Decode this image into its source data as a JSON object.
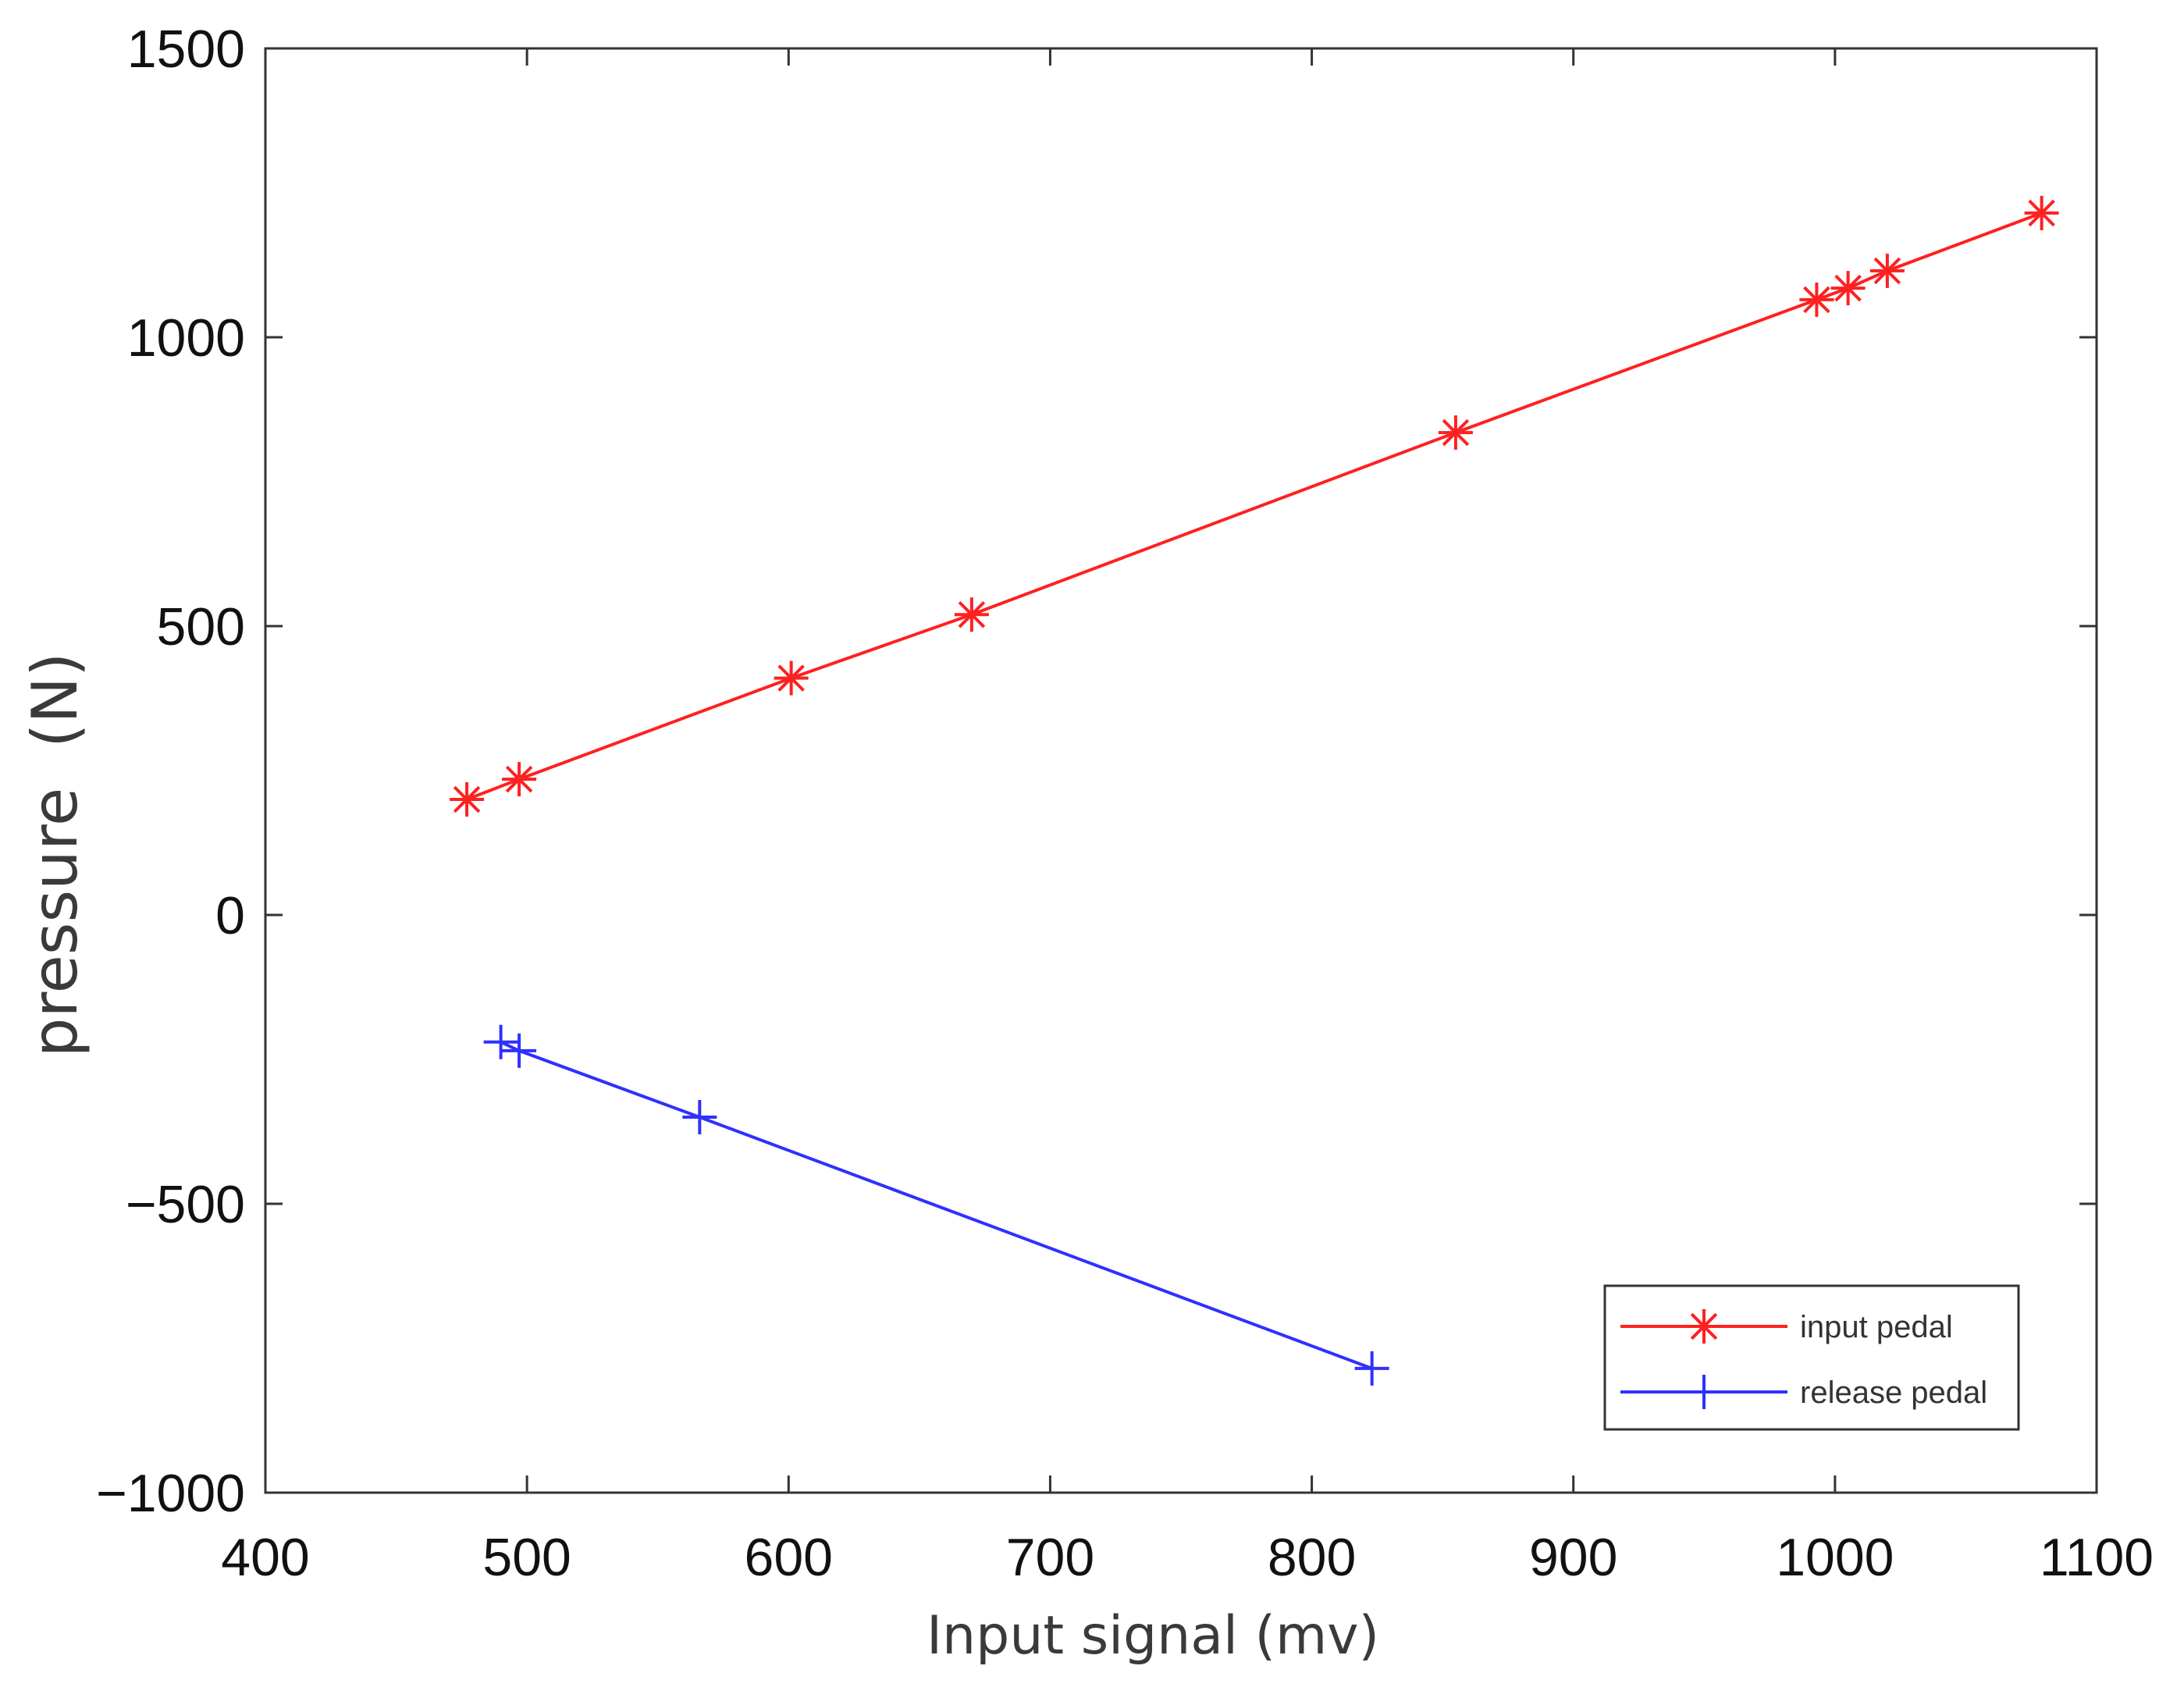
{
  "chart_data": {
    "type": "line",
    "title": "",
    "xlabel": "Input signal (mv)",
    "ylabel": "pressure  (N)",
    "xlim": [
      400,
      1100
    ],
    "ylim": [
      -1000,
      1500
    ],
    "xticks": [
      400,
      500,
      600,
      700,
      800,
      900,
      1000,
      1100
    ],
    "yticks": [
      -1000,
      -500,
      0,
      500,
      1000,
      1500
    ],
    "xtick_labels": [
      "400",
      "500",
      "600",
      "700",
      "800",
      "900",
      "1000",
      "1100"
    ],
    "ytick_labels": [
      "−1000",
      "−500",
      "0",
      "500",
      "1000",
      "1500"
    ],
    "grid": false,
    "legend_position": "bottom-right",
    "series": [
      {
        "name": "input pedal",
        "color": "#ff2020",
        "marker": "asterisk",
        "x": [
          477,
          497,
          601,
          670,
          855,
          993,
          1005,
          1020,
          1079
        ],
        "y": [
          200,
          235,
          410,
          520,
          835,
          1065,
          1085,
          1115,
          1215
        ]
      },
      {
        "name": "release pedal",
        "color": "#3030ff",
        "marker": "plus",
        "x": [
          490,
          497,
          566,
          823
        ],
        "y": [
          -220,
          -235,
          -350,
          -785
        ]
      }
    ]
  }
}
